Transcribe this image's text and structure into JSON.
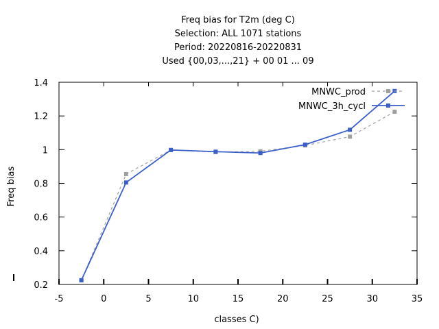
{
  "chart_data": {
    "type": "line",
    "title": [
      "Freq bias  for T2m (deg C)",
      "Selection: ALL    1071 stations",
      "Period: 20220816-20220831",
      "Used {00,03,...,21} + 00 01 ... 09"
    ],
    "xlabel": "classes C)",
    "ylabel": "Freq bias",
    "xlim": [
      -5,
      35
    ],
    "ylim": [
      0.2,
      1.4
    ],
    "xticks": [
      -5,
      0,
      5,
      10,
      15,
      20,
      25,
      30,
      35
    ],
    "yticks": [
      0.2,
      0.4,
      0.6,
      0.8,
      1,
      1.2,
      1.4
    ],
    "xtick_labels": [
      "-5",
      "0",
      "5",
      "10",
      "15",
      "20",
      "25",
      "30",
      "35"
    ],
    "ytick_labels": [
      "0.2",
      "0.4",
      "0.6",
      "0.8",
      "1",
      "1.2",
      "1.4"
    ],
    "grid": false,
    "legend_position": "top-right",
    "series": [
      {
        "name": "MNWC_prod",
        "color": "#a0a0a0",
        "dashed": true,
        "x": [
          -2.5,
          2.5,
          7.5,
          12.5,
          17.5,
          22.5,
          27.5,
          32.5
        ],
        "y": [
          0.225,
          0.855,
          0.998,
          0.985,
          0.99,
          1.025,
          1.077,
          1.225
        ]
      },
      {
        "name": "MNWC_3h_cycl",
        "color": "#3a5fcd",
        "dashed": false,
        "x": [
          -2.5,
          2.5,
          7.5,
          12.5,
          17.5,
          22.5,
          27.5,
          32.5
        ],
        "y": [
          0.225,
          0.805,
          0.998,
          0.988,
          0.98,
          1.03,
          1.118,
          1.348
        ]
      }
    ]
  }
}
